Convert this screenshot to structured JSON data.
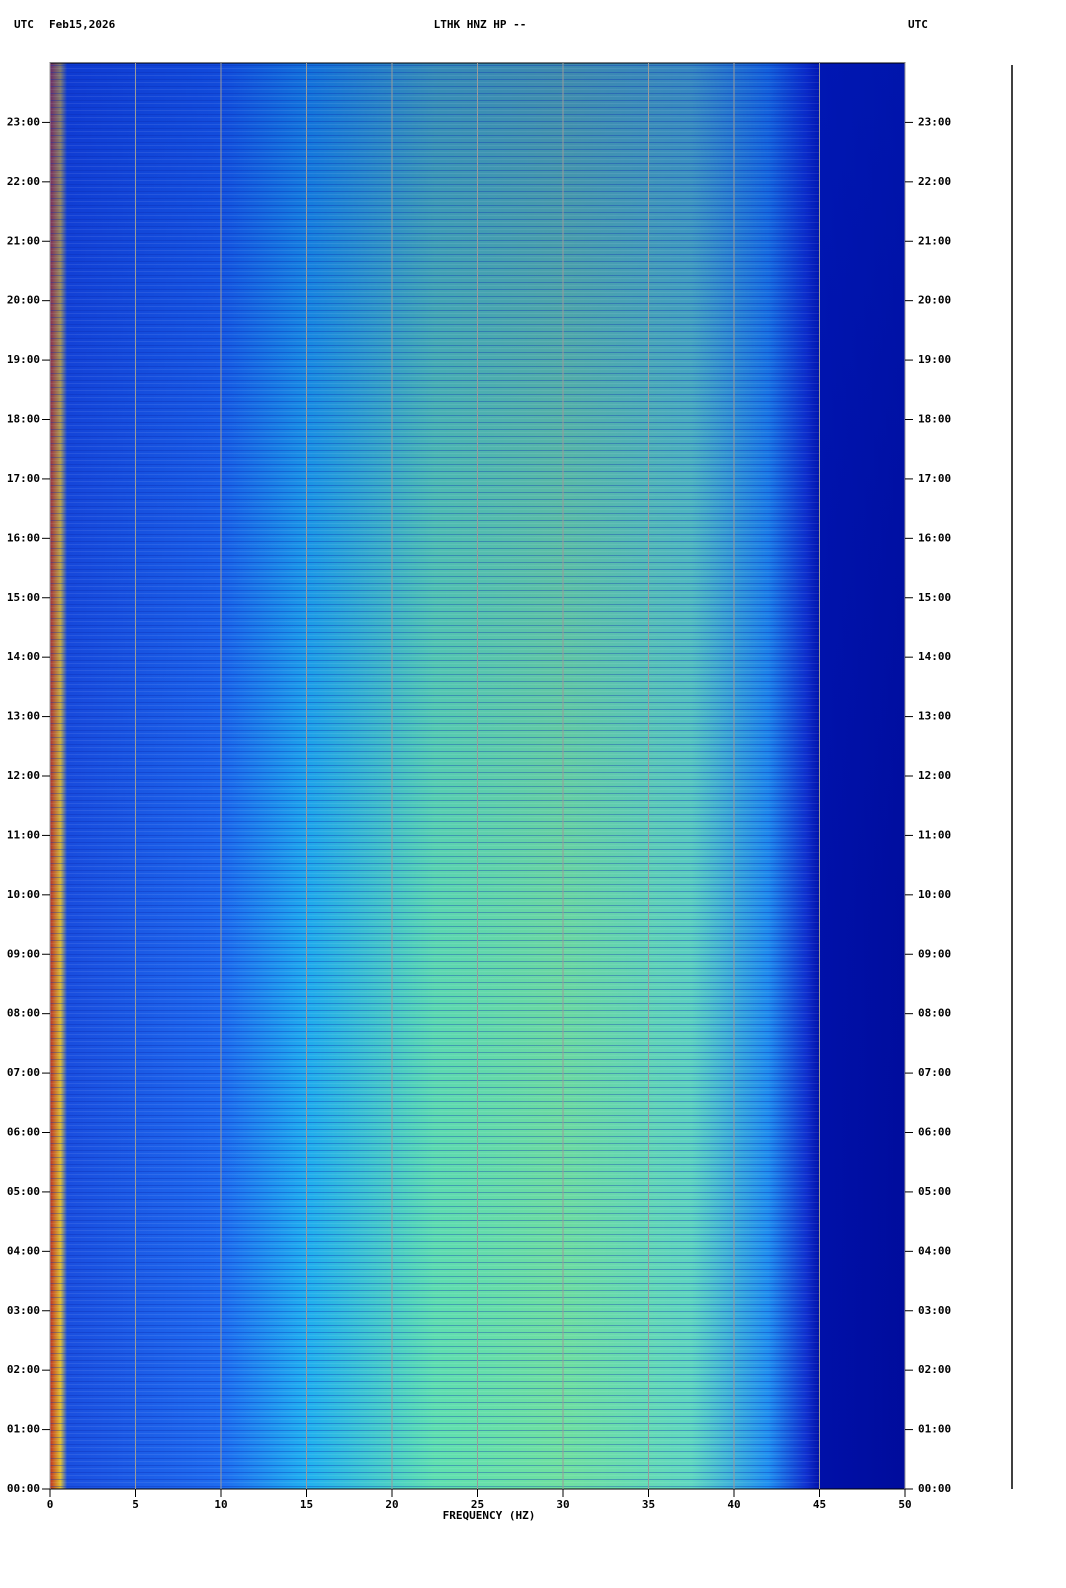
{
  "chart_data": {
    "type": "spectrogram",
    "left_label": "UTC",
    "date": "Feb15,2026",
    "title": "LTHK HNZ HP --",
    "right_label": "UTC",
    "xlabel": "FREQUENCY (HZ)",
    "xlim": [
      0,
      50
    ],
    "xticks": [
      0,
      5,
      10,
      15,
      20,
      25,
      30,
      35,
      40,
      45,
      50
    ],
    "ylim": [
      0,
      24
    ],
    "yticks": [
      {
        "value": 0,
        "label": "00:00"
      },
      {
        "value": 1,
        "label": "01:00"
      },
      {
        "value": 2,
        "label": "02:00"
      },
      {
        "value": 3,
        "label": "03:00"
      },
      {
        "value": 4,
        "label": "04:00"
      },
      {
        "value": 5,
        "label": "05:00"
      },
      {
        "value": 6,
        "label": "06:00"
      },
      {
        "value": 7,
        "label": "07:00"
      },
      {
        "value": 8,
        "label": "08:00"
      },
      {
        "value": 9,
        "label": "09:00"
      },
      {
        "value": 10,
        "label": "10:00"
      },
      {
        "value": 11,
        "label": "11:00"
      },
      {
        "value": 12,
        "label": "12:00"
      },
      {
        "value": 13,
        "label": "13:00"
      },
      {
        "value": 14,
        "label": "14:00"
      },
      {
        "value": 15,
        "label": "15:00"
      },
      {
        "value": 16,
        "label": "16:00"
      },
      {
        "value": 17,
        "label": "17:00"
      },
      {
        "value": 18,
        "label": "18:00"
      },
      {
        "value": 19,
        "label": "19:00"
      },
      {
        "value": 20,
        "label": "20:00"
      },
      {
        "value": 21,
        "label": "21:00"
      },
      {
        "value": 22,
        "label": "22:00"
      },
      {
        "value": 23,
        "label": "23:00"
      }
    ],
    "grid": true,
    "grid_color": "#9a9a9a"
  }
}
